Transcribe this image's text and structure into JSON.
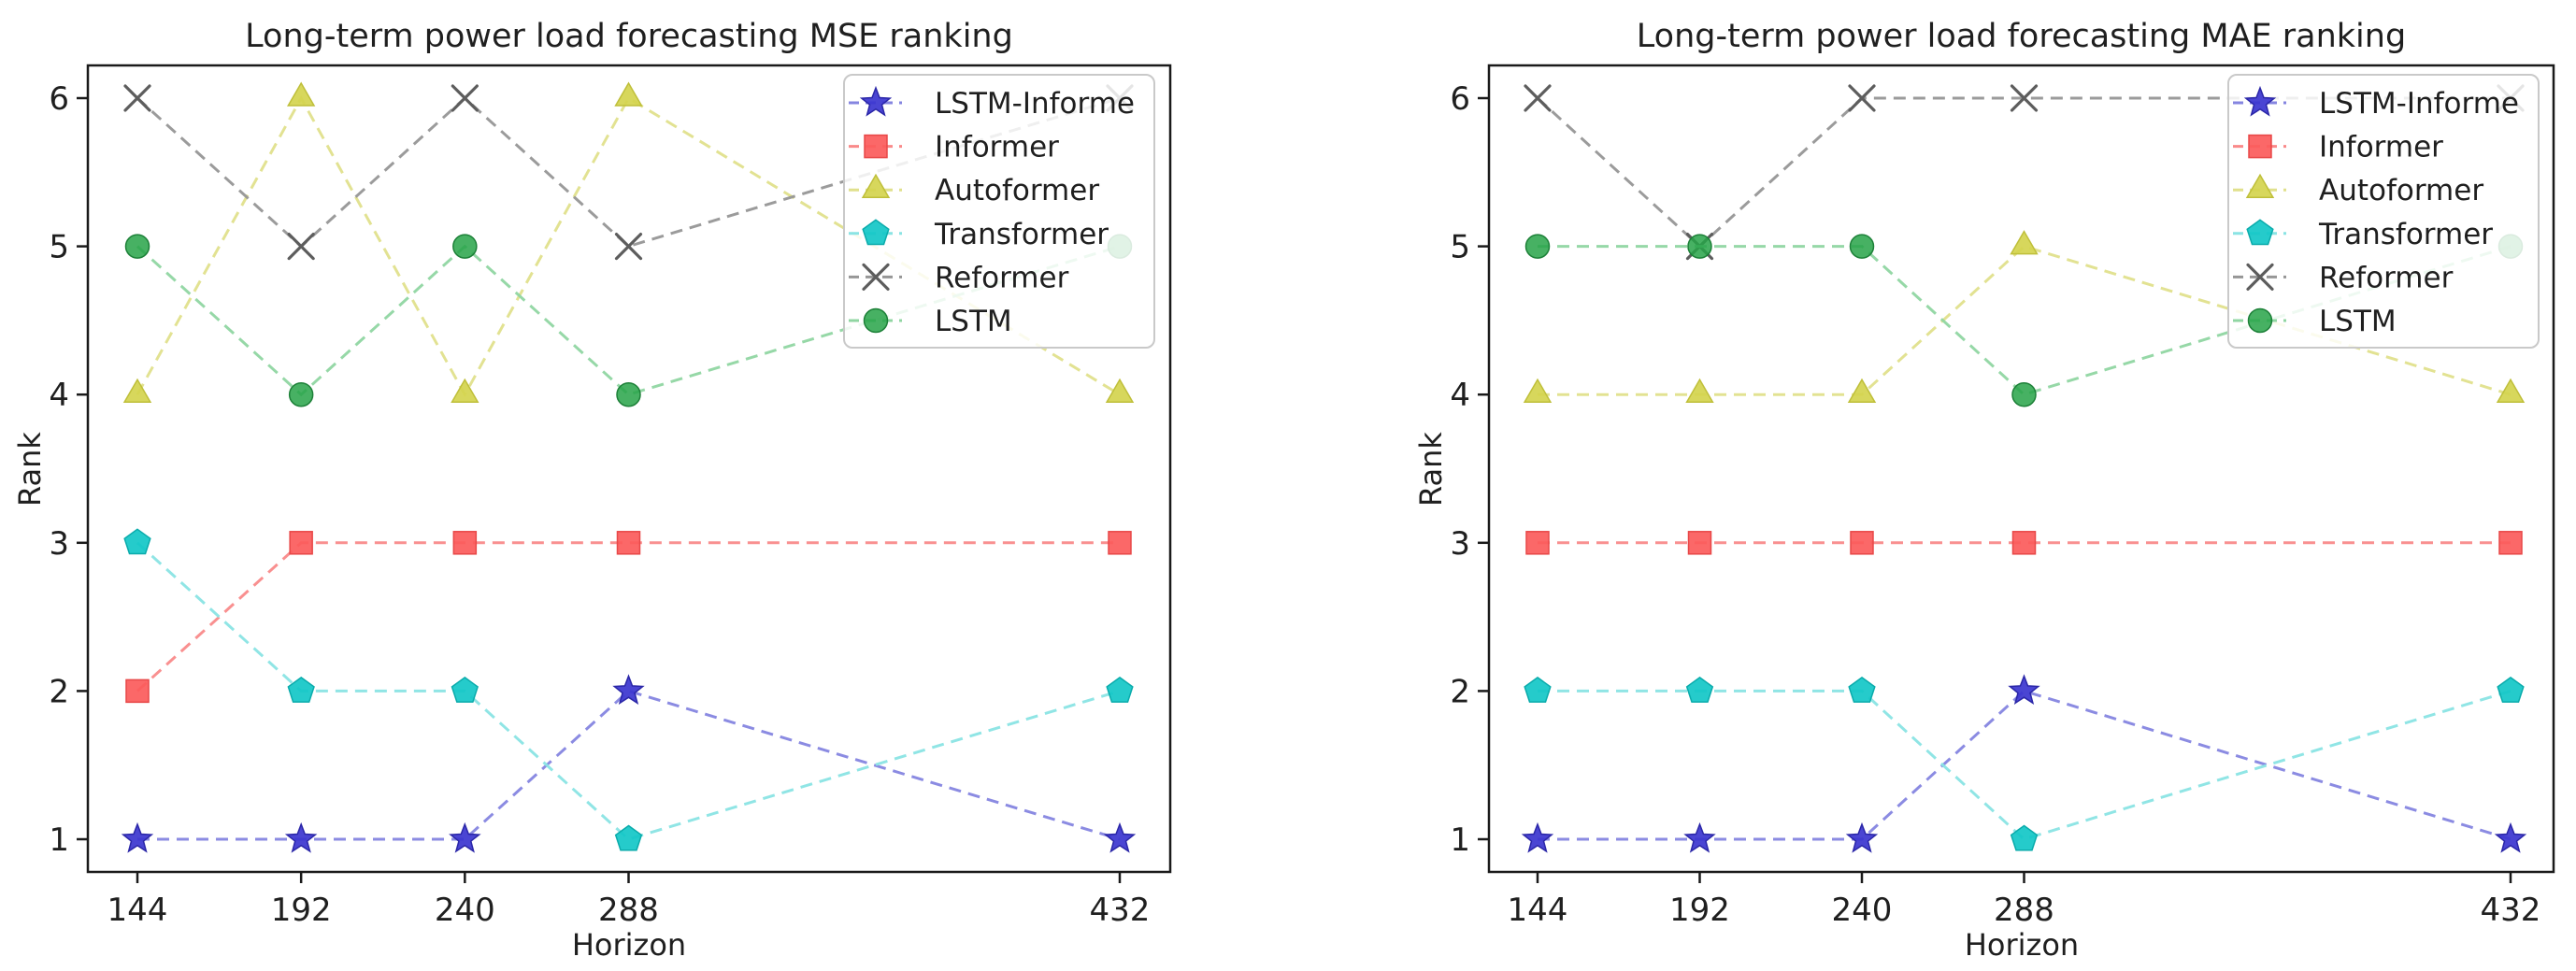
{
  "page": {
    "background": "#ffffff",
    "text_color": "#1f1f1f"
  },
  "shared": {
    "xlabel": "Horizon",
    "ylabel": "Rank",
    "x_ticks": [
      "144",
      "192",
      "240",
      "288",
      "432"
    ],
    "y_ticks": [
      "1",
      "2",
      "3",
      "4",
      "5",
      "6"
    ]
  },
  "chart_data": [
    {
      "type": "line",
      "title": "Long-term power load forecasting MSE ranking",
      "xlabel": "Horizon",
      "ylabel": "Rank",
      "x": [
        144,
        192,
        240,
        288,
        432
      ],
      "ylim": [
        1,
        6
      ],
      "grid": false,
      "legend_position": "upper right",
      "line_style": "dashed",
      "series": [
        {
          "name": "LSTM-Informe",
          "marker": "star",
          "color": "#3b35cf",
          "edge": "#2b27a8",
          "line_color": "#8585e0",
          "values": [
            1,
            1,
            1,
            2,
            1
          ]
        },
        {
          "name": "Informer",
          "marker": "square",
          "color": "#fb5b5b",
          "edge": "#e84848",
          "line_color": "#f98a8a",
          "values": [
            2,
            3,
            3,
            3,
            3
          ]
        },
        {
          "name": "Autoformer",
          "marker": "triangle",
          "color": "#d4d44e",
          "edge": "#bfbf3a",
          "line_color": "#e0e08c",
          "values": [
            4,
            6,
            4,
            6,
            4
          ]
        },
        {
          "name": "Transformer",
          "marker": "pentagon",
          "color": "#12c7c7",
          "edge": "#0aabab",
          "line_color": "#8ae4e4",
          "values": [
            3,
            2,
            2,
            1,
            2
          ]
        },
        {
          "name": "Reformer",
          "marker": "x",
          "color": "#5d5d5d",
          "edge": "#5d5d5d",
          "line_color": "#969696",
          "values": [
            6,
            5,
            6,
            5,
            6
          ]
        },
        {
          "name": "LSTM",
          "marker": "circle",
          "color": "#27a348",
          "edge": "#1d8038",
          "line_color": "#90d6a2",
          "values": [
            5,
            4,
            5,
            4,
            5
          ]
        }
      ]
    },
    {
      "type": "line",
      "title": "Long-term power load forecasting MAE ranking",
      "xlabel": "Horizon",
      "ylabel": "Rank",
      "x": [
        144,
        192,
        240,
        288,
        432
      ],
      "ylim": [
        1,
        6
      ],
      "grid": false,
      "legend_position": "upper right",
      "line_style": "dashed",
      "series": [
        {
          "name": "LSTM-Informe",
          "marker": "star",
          "color": "#3b35cf",
          "edge": "#2b27a8",
          "line_color": "#8585e0",
          "values": [
            1,
            1,
            1,
            2,
            1
          ]
        },
        {
          "name": "Informer",
          "marker": "square",
          "color": "#fb5b5b",
          "edge": "#e84848",
          "line_color": "#f98a8a",
          "values": [
            3,
            3,
            3,
            3,
            3
          ]
        },
        {
          "name": "Autoformer",
          "marker": "triangle",
          "color": "#d4d44e",
          "edge": "#bfbf3a",
          "line_color": "#e0e08c",
          "values": [
            4,
            4,
            4,
            5,
            4
          ]
        },
        {
          "name": "Transformer",
          "marker": "pentagon",
          "color": "#12c7c7",
          "edge": "#0aabab",
          "line_color": "#8ae4e4",
          "values": [
            2,
            2,
            2,
            1,
            2
          ]
        },
        {
          "name": "Reformer",
          "marker": "x",
          "color": "#5d5d5d",
          "edge": "#5d5d5d",
          "line_color": "#969696",
          "values": [
            6,
            5,
            6,
            6,
            6
          ]
        },
        {
          "name": "LSTM",
          "marker": "circle",
          "color": "#27a348",
          "edge": "#1d8038",
          "line_color": "#90d6a2",
          "values": [
            5,
            5,
            5,
            4,
            5
          ]
        }
      ]
    }
  ]
}
